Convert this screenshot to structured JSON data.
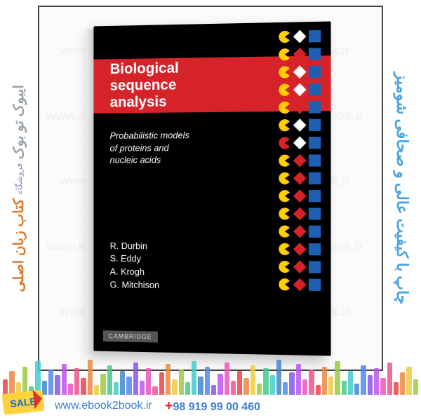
{
  "left_band": {
    "line1": "ایبوک تو بوک",
    "sub": "فروشگاه",
    "line2": "کتاب زبان اصلی"
  },
  "right_band": {
    "text": "چاپ با کیفیت عالی و صحافی شومیز"
  },
  "sale_tag": {
    "label": "SALE"
  },
  "footer": {
    "url": "www.ebook2book.ir",
    "phone": "+98 919 99 00 460"
  },
  "watermark": {
    "text": "www.ebook2book.ir"
  },
  "book": {
    "title_line1": "Biological",
    "title_line2": "sequence",
    "title_line3": "analysis",
    "subtitle_line1": "Probabilistic models",
    "subtitle_line2": "of proteins and",
    "subtitle_line3": "nucleic acids",
    "authors": [
      "R. Durbin",
      "S. Eddy",
      "A. Krogh",
      "G. Mitchison"
    ],
    "publisher": "CAMBRIDGE",
    "colors": {
      "cover_bg": "#000000",
      "band": "#d6232a",
      "yellow": "#ffcf00",
      "blue": "#1e5fb4",
      "white": "#ffffff"
    },
    "shape_rows": [
      [
        "pac-yellow",
        "diamond-white",
        "sq-blue"
      ],
      [
        "pac-yellow",
        "diamond-red",
        "sq-blue"
      ],
      [
        "pac-yellow",
        "diamond-white",
        "sq-blue"
      ],
      [
        "pac-yellow",
        "diamond-white",
        "sq-blue"
      ],
      [
        "pac-yellow",
        "diamond-red",
        "sq-blue"
      ],
      [
        "pac-yellow",
        "diamond-white",
        "sq-blue"
      ],
      [
        "pac-red",
        "diamond-white",
        "sq-blue"
      ],
      [
        "pac-yellow",
        "diamond-red",
        "sq-blue"
      ],
      [
        "pac-yellow",
        "diamond-red",
        "sq-blue"
      ],
      [
        "pac-yellow",
        "diamond-red",
        "sq-blue"
      ],
      [
        "pac-yellow",
        "diamond-red",
        "sq-blue"
      ],
      [
        "pac-yellow",
        "diamond-red",
        "sq-blue"
      ],
      [
        "pac-yellow",
        "diamond-red",
        "sq-blue"
      ],
      [
        "pac-yellow",
        "diamond-red",
        "sq-blue"
      ],
      [
        "pac-yellow",
        "diamond-red",
        "sq-blue"
      ]
    ]
  },
  "equalizer": {
    "bar_colors": [
      "#e44",
      "#e84",
      "#ec4",
      "#9c4",
      "#4c8",
      "#4cc",
      "#48c",
      "#58e",
      "#85e",
      "#b5e",
      "#e5b",
      "#e58"
    ],
    "heights": [
      22,
      34,
      18,
      40,
      12,
      48,
      20,
      36,
      28,
      44,
      16,
      38,
      24,
      50,
      14,
      30,
      42,
      18,
      34,
      26,
      46,
      20,
      38,
      12,
      32,
      44,
      22,
      36,
      18,
      48,
      26,
      40,
      14,
      30,
      46,
      20,
      34,
      24,
      42,
      16,
      38,
      28,
      50,
      18,
      32,
      44,
      22,
      36,
      14,
      40,
      26,
      48,
      20,
      34,
      16,
      42,
      28,
      38,
      24,
      46,
      18,
      32,
      40,
      22
    ]
  }
}
